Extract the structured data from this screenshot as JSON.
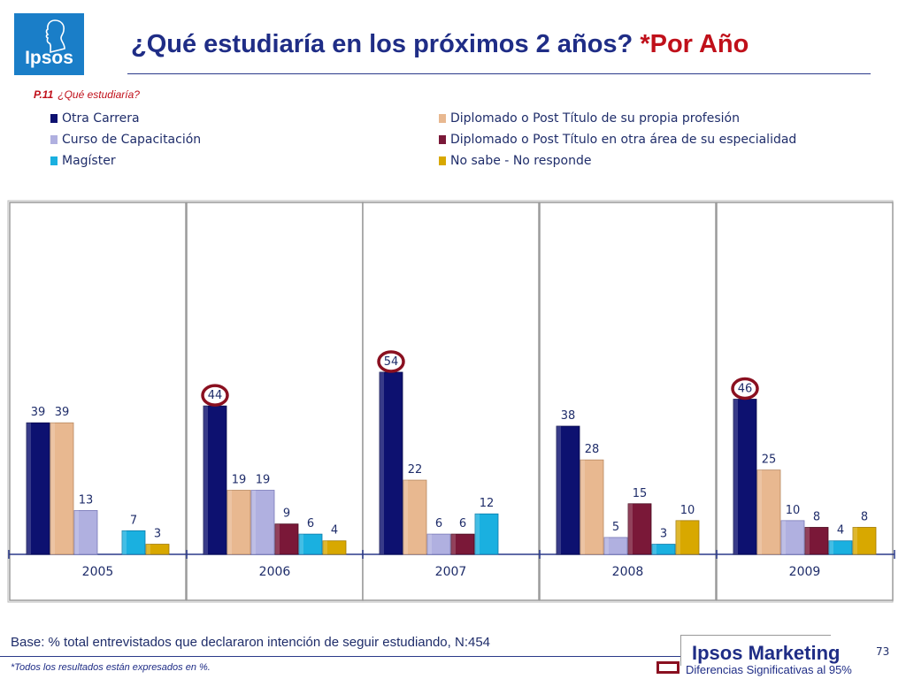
{
  "logo": {
    "text": "Ipsos"
  },
  "header": {
    "title_main": "¿Qué estudiaría en los próximos 2 años? ",
    "title_accent": "*Por Año"
  },
  "question": {
    "code": "P.11",
    "text": "¿Qué estudiaría?"
  },
  "colors": {
    "otra_carrera": "#0d1170",
    "diplomado_propia": "#e8b890",
    "curso": "#b0b0e0",
    "diplomado_otra": "#7a1838",
    "magister": "#1ab0e0",
    "no_sabe": "#d8a800",
    "highlight_circle": "#8a1020",
    "axis": "#2b3a8a"
  },
  "chart_data": {
    "type": "bar",
    "categories": [
      "2005",
      "2006",
      "2007",
      "2008",
      "2009"
    ],
    "series": [
      {
        "name": "Otra Carrera",
        "values": [
          39,
          44,
          54,
          38,
          46
        ]
      },
      {
        "name": "Diplomado o Post Título de su propia profesión",
        "values": [
          39,
          19,
          22,
          28,
          25
        ]
      },
      {
        "name": "Curso de Capacitación",
        "values": [
          13,
          19,
          6,
          5,
          10
        ]
      },
      {
        "name": "Diplomado o Post Título en otra área de su especialidad",
        "values": [
          null,
          9,
          6,
          15,
          8
        ]
      },
      {
        "name": "Magíster",
        "values": [
          7,
          6,
          12,
          3,
          4
        ]
      },
      {
        "name": "No sabe - No responde",
        "values": [
          3,
          4,
          null,
          10,
          8
        ]
      }
    ],
    "highlighted": [
      {
        "category": "2006",
        "series": "Otra Carrera"
      },
      {
        "category": "2007",
        "series": "Otra Carrera"
      },
      {
        "category": "2009",
        "series": "Otra Carrera"
      }
    ],
    "ylim": [
      0,
      60
    ],
    "legend": "top"
  },
  "footer": {
    "base": "Base: % total entrevistados que declararon intención de seguir estudiando, N:454",
    "note": "*Todos los resultados están expresados en %.",
    "brand": "Ipsos Marketing",
    "page": "73",
    "significance": "Diferencias Significativas al 95%"
  }
}
